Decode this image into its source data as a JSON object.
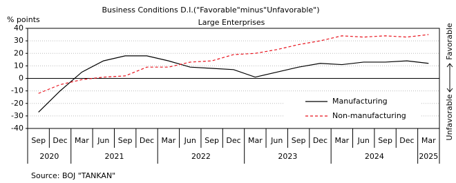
{
  "chart_data": {
    "type": "line",
    "title": "Business Conditions  D.I.(\"Favorable\"minus\"Unfavorable\")",
    "subtitle": "Large Enterprises",
    "y_label": "% points",
    "right_top_label": "Favorable",
    "right_bottom_label": "Unfavorable",
    "source": "Source: BOJ \"TANKAN\"",
    "categories": [
      "Sep",
      "Dec",
      "Mar",
      "Jun",
      "Sep",
      "Dec",
      "Mar",
      "Jun",
      "Sep",
      "Dec",
      "Mar",
      "Jun",
      "Sep",
      "Dec",
      "Mar",
      "Jun",
      "Sep",
      "Dec",
      "Mar"
    ],
    "years": [
      "2020",
      "2020",
      "2021",
      "2021",
      "2021",
      "2021",
      "2022",
      "2022",
      "2022",
      "2022",
      "2023",
      "2023",
      "2023",
      "2023",
      "2024",
      "2024",
      "2024",
      "2024",
      "2025"
    ],
    "series": [
      {
        "name": "Manufacturing",
        "color": "#000000",
        "dash": "none",
        "values": [
          -27,
          -10,
          5,
          14,
          18,
          18,
          14,
          9,
          8,
          7,
          1,
          5,
          9,
          12,
          11,
          13,
          13,
          14,
          12
        ]
      },
      {
        "name": "Non-manufacturing",
        "color": "#e8101a",
        "dash": "4 3",
        "values": [
          -12,
          -5,
          -1,
          1,
          2,
          9,
          9,
          13,
          14,
          19,
          20,
          23,
          27,
          30,
          34,
          33,
          34,
          33,
          35
        ]
      }
    ],
    "ylim": [
      -40,
      40
    ],
    "yticks": [
      -40,
      -30,
      -20,
      -10,
      0,
      10,
      20,
      30,
      40
    ],
    "grid": true
  }
}
